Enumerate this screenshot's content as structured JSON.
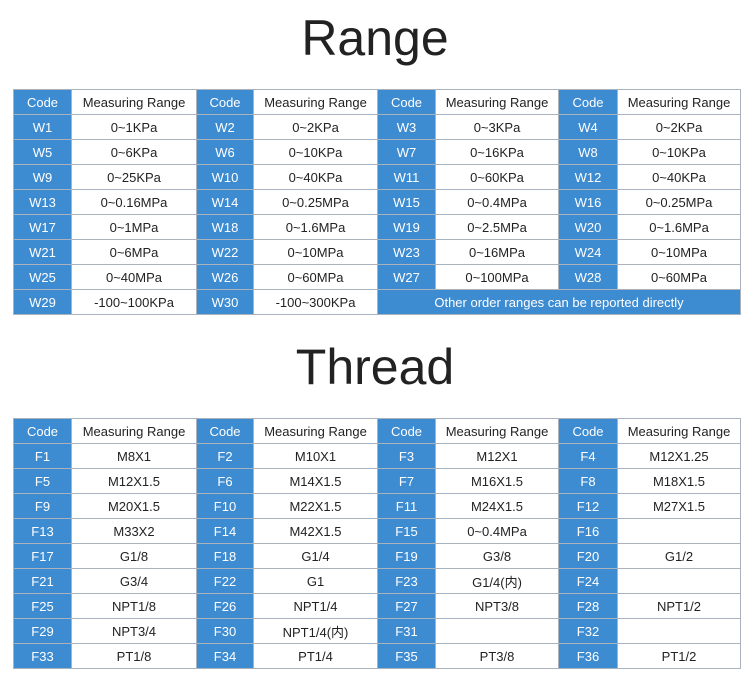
{
  "range": {
    "title": "Range",
    "header": [
      "Code",
      "Measuring Range",
      "Code",
      "Measuring Range",
      "Code",
      "Measuring Range",
      "Code",
      "Measuring Range"
    ],
    "rows": [
      [
        "W1",
        "0~1KPa",
        "W2",
        "0~2KPa",
        "W3",
        "0~3KPa",
        "W4",
        "0~2KPa"
      ],
      [
        "W5",
        "0~6KPa",
        "W6",
        "0~10KPa",
        "W7",
        "0~16KPa",
        "W8",
        "0~10KPa"
      ],
      [
        "W9",
        "0~25KPa",
        "W10",
        "0~40KPa",
        "W11",
        "0~60KPa",
        "W12",
        "0~40KPa"
      ],
      [
        "W13",
        "0~0.16MPa",
        "W14",
        "0~0.25MPa",
        "W15",
        "0~0.4MPa",
        "W16",
        "0~0.25MPa"
      ],
      [
        "W17",
        "0~1MPa",
        "W18",
        "0~1.6MPa",
        "W19",
        "0~2.5MPa",
        "W20",
        "0~1.6MPa"
      ],
      [
        "W21",
        "0~6MPa",
        "W22",
        "0~10MPa",
        "W23",
        "0~16MPa",
        "W24",
        "0~10MPa"
      ],
      [
        "W25",
        "0~40MPa",
        "W26",
        "0~60MPa",
        "W27",
        "0~100MPa",
        "W28",
        "0~60MPa"
      ],
      [
        "W29",
        "-100~100KPa",
        "W30",
        "-100~300KPa"
      ]
    ],
    "note": "Other order ranges can be reported directly"
  },
  "thread": {
    "title": "Thread",
    "header": [
      "Code",
      "Measuring Range",
      "Code",
      "Measuring Range",
      "Code",
      "Measuring Range",
      "Code",
      "Measuring Range"
    ],
    "rows": [
      [
        "F1",
        "M8X1",
        "F2",
        "M10X1",
        "F3",
        "M12X1",
        "F4",
        "M12X1.25"
      ],
      [
        "F5",
        "M12X1.5",
        "F6",
        "M14X1.5",
        "F7",
        "M16X1.5",
        "F8",
        "M18X1.5"
      ],
      [
        "F9",
        "M20X1.5",
        "F10",
        "M22X1.5",
        "F11",
        "M24X1.5",
        "F12",
        "M27X1.5"
      ],
      [
        "F13",
        "M33X2",
        "F14",
        "M42X1.5",
        "F15",
        "0~0.4MPa",
        "F16",
        null
      ],
      [
        "F17",
        "G1/8",
        "F18",
        "G1/4",
        "F19",
        "G3/8",
        "F20",
        "G1/2"
      ],
      [
        "F21",
        "G3/4",
        "F22",
        "G1",
        "F23",
        "G1/4(内)",
        "F24",
        null
      ],
      [
        "F25",
        "NPT1/8",
        "F26",
        "NPT1/4",
        "F27",
        "NPT3/8",
        "F28",
        "NPT1/2"
      ],
      [
        "F29",
        "NPT3/4",
        "F30",
        "NPT1/4(内)",
        "F31",
        null,
        "F32",
        null
      ],
      [
        "F33",
        "PT1/8",
        "F34",
        "PT1/4",
        "F35",
        "PT3/8",
        "F36",
        "PT1/2"
      ]
    ]
  }
}
